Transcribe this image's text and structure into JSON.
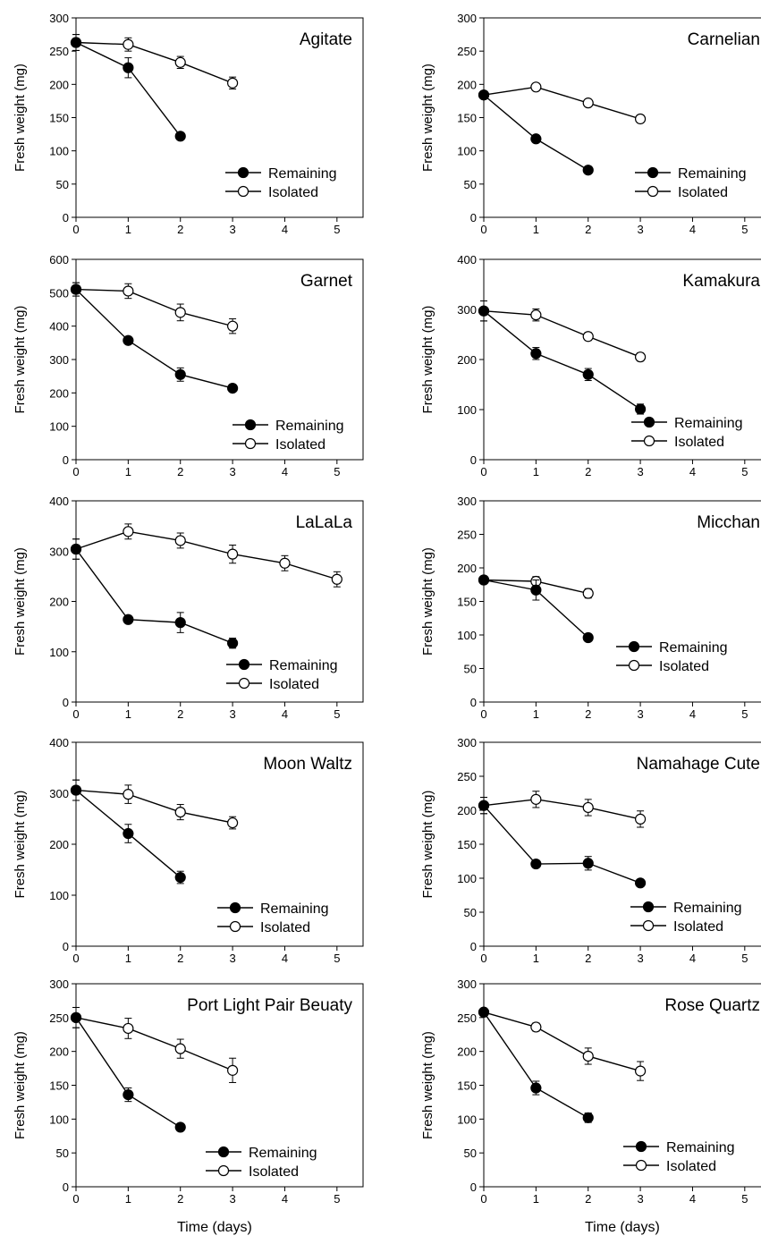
{
  "figure": {
    "xlabel": "Time (days)",
    "ylabel": "Fresh weight (mg)",
    "legend": [
      "Remaining",
      "Isolated"
    ]
  },
  "chart_data": [
    {
      "type": "line",
      "title": "Agitate",
      "xlabel": "Time (days)",
      "ylabel": "Fresh weight (mg)",
      "xlim": [
        0,
        5.5
      ],
      "ylim": [
        0,
        300
      ],
      "xticks": [
        0,
        1,
        2,
        3,
        4,
        5
      ],
      "yticks": [
        0,
        50,
        100,
        150,
        200,
        250,
        300
      ],
      "grid": false,
      "legend_position": "bottom-right",
      "series": [
        {
          "name": "Remaining",
          "marker": "filled-circle",
          "x": [
            0,
            1,
            2
          ],
          "y": [
            263,
            225,
            122
          ],
          "err": [
            12,
            15,
            5
          ]
        },
        {
          "name": "Isolated",
          "marker": "open-circle",
          "x": [
            0,
            1,
            2,
            3
          ],
          "y": [
            263,
            260,
            233,
            202
          ],
          "err": [
            12,
            10,
            9,
            9
          ]
        }
      ]
    },
    {
      "type": "line",
      "title": "Carnelian",
      "xlabel": "Time (days)",
      "ylabel": "Fresh weight (mg)",
      "xlim": [
        0,
        5.5
      ],
      "ylim": [
        0,
        300
      ],
      "xticks": [
        0,
        1,
        2,
        3,
        4,
        5
      ],
      "yticks": [
        0,
        50,
        100,
        150,
        200,
        250,
        300
      ],
      "grid": false,
      "legend_position": "bottom-right",
      "series": [
        {
          "name": "Remaining",
          "marker": "filled-circle",
          "x": [
            0,
            1,
            2
          ],
          "y": [
            184,
            118,
            71
          ],
          "err": [
            4,
            4,
            3
          ]
        },
        {
          "name": "Isolated",
          "marker": "open-circle",
          "x": [
            0,
            1,
            2,
            3
          ],
          "y": [
            184,
            196,
            172,
            148
          ],
          "err": [
            4,
            4,
            4,
            6
          ]
        }
      ]
    },
    {
      "type": "line",
      "title": "Garnet",
      "xlabel": "Time (days)",
      "ylabel": "Fresh weight (mg)",
      "xlim": [
        0,
        5.5
      ],
      "ylim": [
        0,
        600
      ],
      "xticks": [
        0,
        1,
        2,
        3,
        4,
        5
      ],
      "yticks": [
        0,
        100,
        200,
        300,
        400,
        500,
        600
      ],
      "grid": false,
      "legend_position": "bottom-right",
      "series": [
        {
          "name": "Remaining",
          "marker": "filled-circle",
          "x": [
            0,
            1,
            2,
            3
          ],
          "y": [
            510,
            357,
            255,
            214
          ],
          "err": [
            20,
            10,
            20,
            8
          ]
        },
        {
          "name": "Isolated",
          "marker": "open-circle",
          "x": [
            0,
            1,
            2,
            3
          ],
          "y": [
            510,
            505,
            441,
            400
          ],
          "err": [
            20,
            22,
            25,
            22
          ]
        }
      ]
    },
    {
      "type": "line",
      "title": "Kamakura",
      "xlabel": "Time (days)",
      "ylabel": "Fresh weight (mg)",
      "xlim": [
        0,
        5.5
      ],
      "ylim": [
        0,
        400
      ],
      "xticks": [
        0,
        1,
        2,
        3,
        4,
        5
      ],
      "yticks": [
        0,
        100,
        200,
        300,
        400
      ],
      "grid": false,
      "legend_position": "bottom-right",
      "series": [
        {
          "name": "Remaining",
          "marker": "filled-circle",
          "x": [
            0,
            1,
            2,
            3
          ],
          "y": [
            297,
            212,
            170,
            101
          ],
          "err": [
            20,
            12,
            12,
            10
          ]
        },
        {
          "name": "Isolated",
          "marker": "open-circle",
          "x": [
            0,
            1,
            2,
            3
          ],
          "y": [
            297,
            289,
            246,
            205
          ],
          "err": [
            20,
            12,
            8,
            8
          ]
        }
      ]
    },
    {
      "type": "line",
      "title": "LaLaLa",
      "xlabel": "Time (days)",
      "ylabel": "Fresh weight (mg)",
      "xlim": [
        0,
        5.5
      ],
      "ylim": [
        0,
        400
      ],
      "xticks": [
        0,
        1,
        2,
        3,
        4,
        5
      ],
      "yticks": [
        0,
        100,
        200,
        300,
        400
      ],
      "grid": false,
      "legend_position": "bottom-right",
      "series": [
        {
          "name": "Remaining",
          "marker": "filled-circle",
          "x": [
            0,
            1,
            2,
            3
          ],
          "y": [
            304,
            164,
            158,
            117
          ],
          "err": [
            20,
            5,
            20,
            10
          ]
        },
        {
          "name": "Isolated",
          "marker": "open-circle",
          "x": [
            0,
            1,
            2,
            3,
            4,
            5
          ],
          "y": [
            304,
            339,
            321,
            294,
            276,
            244
          ],
          "err": [
            20,
            15,
            15,
            18,
            15,
            15
          ]
        }
      ]
    },
    {
      "type": "line",
      "title": "Micchan",
      "xlabel": "Time (days)",
      "ylabel": "Fresh weight (mg)",
      "xlim": [
        0,
        5.5
      ],
      "ylim": [
        0,
        300
      ],
      "xticks": [
        0,
        1,
        2,
        3,
        4,
        5
      ],
      "yticks": [
        0,
        50,
        100,
        150,
        200,
        250,
        300
      ],
      "grid": false,
      "legend_position": "bottom-right",
      "series": [
        {
          "name": "Remaining",
          "marker": "filled-circle",
          "x": [
            0,
            1,
            2
          ],
          "y": [
            182,
            167,
            96
          ],
          "err": [
            5,
            15,
            3
          ]
        },
        {
          "name": "Isolated",
          "marker": "open-circle",
          "x": [
            0,
            1,
            2
          ],
          "y": [
            182,
            180,
            162
          ],
          "err": [
            5,
            7,
            7
          ]
        }
      ]
    },
    {
      "type": "line",
      "title": "Moon Waltz",
      "xlabel": "Time (days)",
      "ylabel": "Fresh weight (mg)",
      "xlim": [
        0,
        5.5
      ],
      "ylim": [
        0,
        400
      ],
      "xticks": [
        0,
        1,
        2,
        3,
        4,
        5
      ],
      "yticks": [
        0,
        100,
        200,
        300,
        400
      ],
      "grid": false,
      "legend_position": "bottom-right",
      "series": [
        {
          "name": "Remaining",
          "marker": "filled-circle",
          "x": [
            0,
            1,
            2
          ],
          "y": [
            306,
            221,
            135
          ],
          "err": [
            20,
            18,
            12
          ]
        },
        {
          "name": "Isolated",
          "marker": "open-circle",
          "x": [
            0,
            1,
            2,
            3
          ],
          "y": [
            306,
            298,
            263,
            242
          ],
          "err": [
            20,
            18,
            15,
            12
          ]
        }
      ]
    },
    {
      "type": "line",
      "title": "Namahage Cute",
      "xlabel": "Time (days)",
      "ylabel": "Fresh weight (mg)",
      "xlim": [
        0,
        5.5
      ],
      "ylim": [
        0,
        300
      ],
      "xticks": [
        0,
        1,
        2,
        3,
        4,
        5
      ],
      "yticks": [
        0,
        50,
        100,
        150,
        200,
        250,
        300
      ],
      "grid": false,
      "legend_position": "bottom-right",
      "series": [
        {
          "name": "Remaining",
          "marker": "filled-circle",
          "x": [
            0,
            1,
            2,
            3
          ],
          "y": [
            207,
            121,
            122,
            93
          ],
          "err": [
            12,
            5,
            10,
            5
          ]
        },
        {
          "name": "Isolated",
          "marker": "open-circle",
          "x": [
            0,
            1,
            2,
            3
          ],
          "y": [
            207,
            216,
            204,
            187
          ],
          "err": [
            12,
            12,
            12,
            12
          ]
        }
      ]
    },
    {
      "type": "line",
      "title": "Port Light Pair Beuaty",
      "xlabel": "Time (days)",
      "ylabel": "Fresh weight (mg)",
      "xlim": [
        0,
        5.5
      ],
      "ylim": [
        0,
        300
      ],
      "xticks": [
        0,
        1,
        2,
        3,
        4,
        5
      ],
      "yticks": [
        0,
        50,
        100,
        150,
        200,
        250,
        300
      ],
      "grid": false,
      "legend_position": "bottom-right",
      "series": [
        {
          "name": "Remaining",
          "marker": "filled-circle",
          "x": [
            0,
            1,
            2
          ],
          "y": [
            250,
            136,
            88
          ],
          "err": [
            15,
            10,
            4
          ]
        },
        {
          "name": "Isolated",
          "marker": "open-circle",
          "x": [
            0,
            1,
            2,
            3
          ],
          "y": [
            250,
            234,
            204,
            172
          ],
          "err": [
            15,
            15,
            14,
            18
          ]
        }
      ]
    },
    {
      "type": "line",
      "title": "Rose Quartz",
      "xlabel": "Time (days)",
      "ylabel": "Fresh weight (mg)",
      "xlim": [
        0,
        5.5
      ],
      "ylim": [
        0,
        300
      ],
      "xticks": [
        0,
        1,
        2,
        3,
        4,
        5
      ],
      "yticks": [
        0,
        50,
        100,
        150,
        200,
        250,
        300
      ],
      "grid": false,
      "legend_position": "bottom-right",
      "series": [
        {
          "name": "Remaining",
          "marker": "filled-circle",
          "x": [
            0,
            1,
            2
          ],
          "y": [
            258,
            146,
            102
          ],
          "err": [
            5,
            10,
            7
          ]
        },
        {
          "name": "Isolated",
          "marker": "open-circle",
          "x": [
            0,
            1,
            2,
            3
          ],
          "y": [
            258,
            236,
            193,
            171
          ],
          "err": [
            5,
            6,
            12,
            14
          ]
        }
      ]
    }
  ]
}
